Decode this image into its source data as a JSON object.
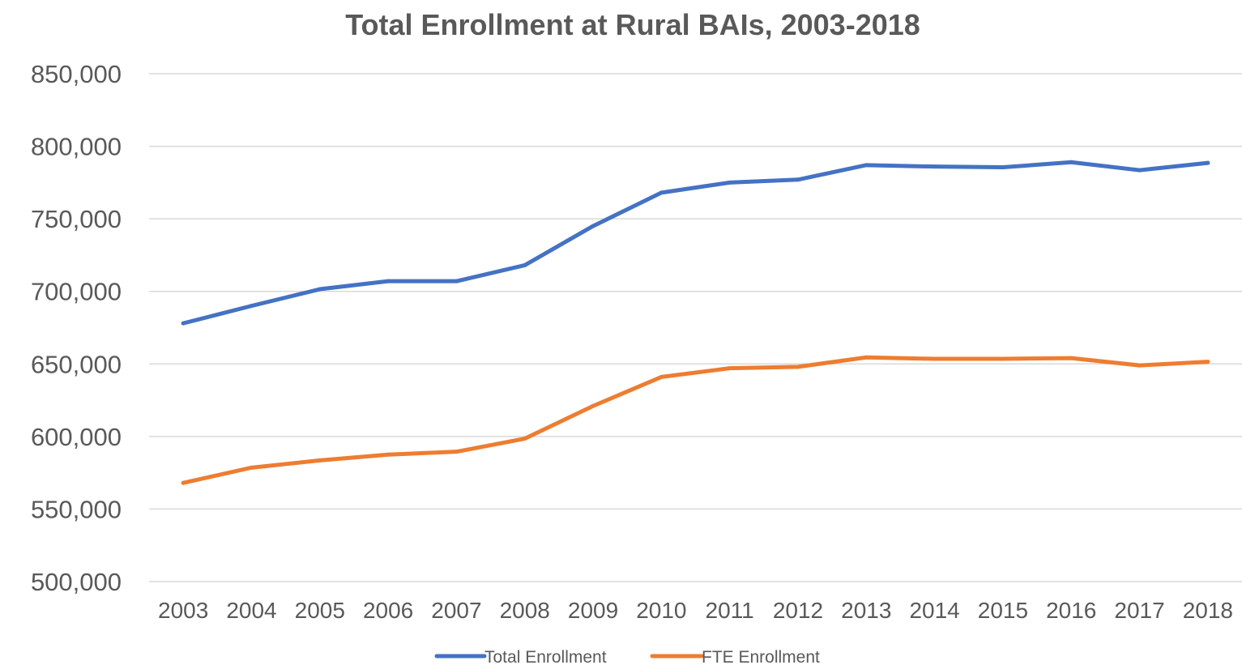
{
  "chart_data": {
    "type": "line",
    "title": "Total Enrollment at Rural BAIs, 2003-2018",
    "xlabel": "",
    "ylabel": "",
    "x": [
      "2003",
      "2004",
      "2005",
      "2006",
      "2007",
      "2008",
      "2009",
      "2010",
      "2011",
      "2012",
      "2013",
      "2014",
      "2015",
      "2016",
      "2017",
      "2018"
    ],
    "ylim": [
      500000,
      850000
    ],
    "y_ticks": [
      500000,
      550000,
      600000,
      650000,
      700000,
      750000,
      800000,
      850000
    ],
    "y_tick_labels": [
      "500,000",
      "550,000",
      "600,000",
      "650,000",
      "700,000",
      "750,000",
      "800,000",
      "850,000"
    ],
    "grid": true,
    "legend_position": "bottom",
    "series": [
      {
        "name": "Total Enrollment",
        "color": "#4472c4",
        "values": [
          678000,
          690000,
          701500,
          707000,
          707000,
          718000,
          745000,
          768000,
          775000,
          777000,
          787000,
          786000,
          785500,
          789000,
          783500,
          788500
        ]
      },
      {
        "name": "FTE Enrollment",
        "color": "#ed7d31",
        "values": [
          568000,
          578500,
          583500,
          587500,
          589500,
          598500,
          621000,
          641000,
          647000,
          648000,
          654500,
          653500,
          653500,
          654000,
          649000,
          651500
        ]
      }
    ]
  }
}
